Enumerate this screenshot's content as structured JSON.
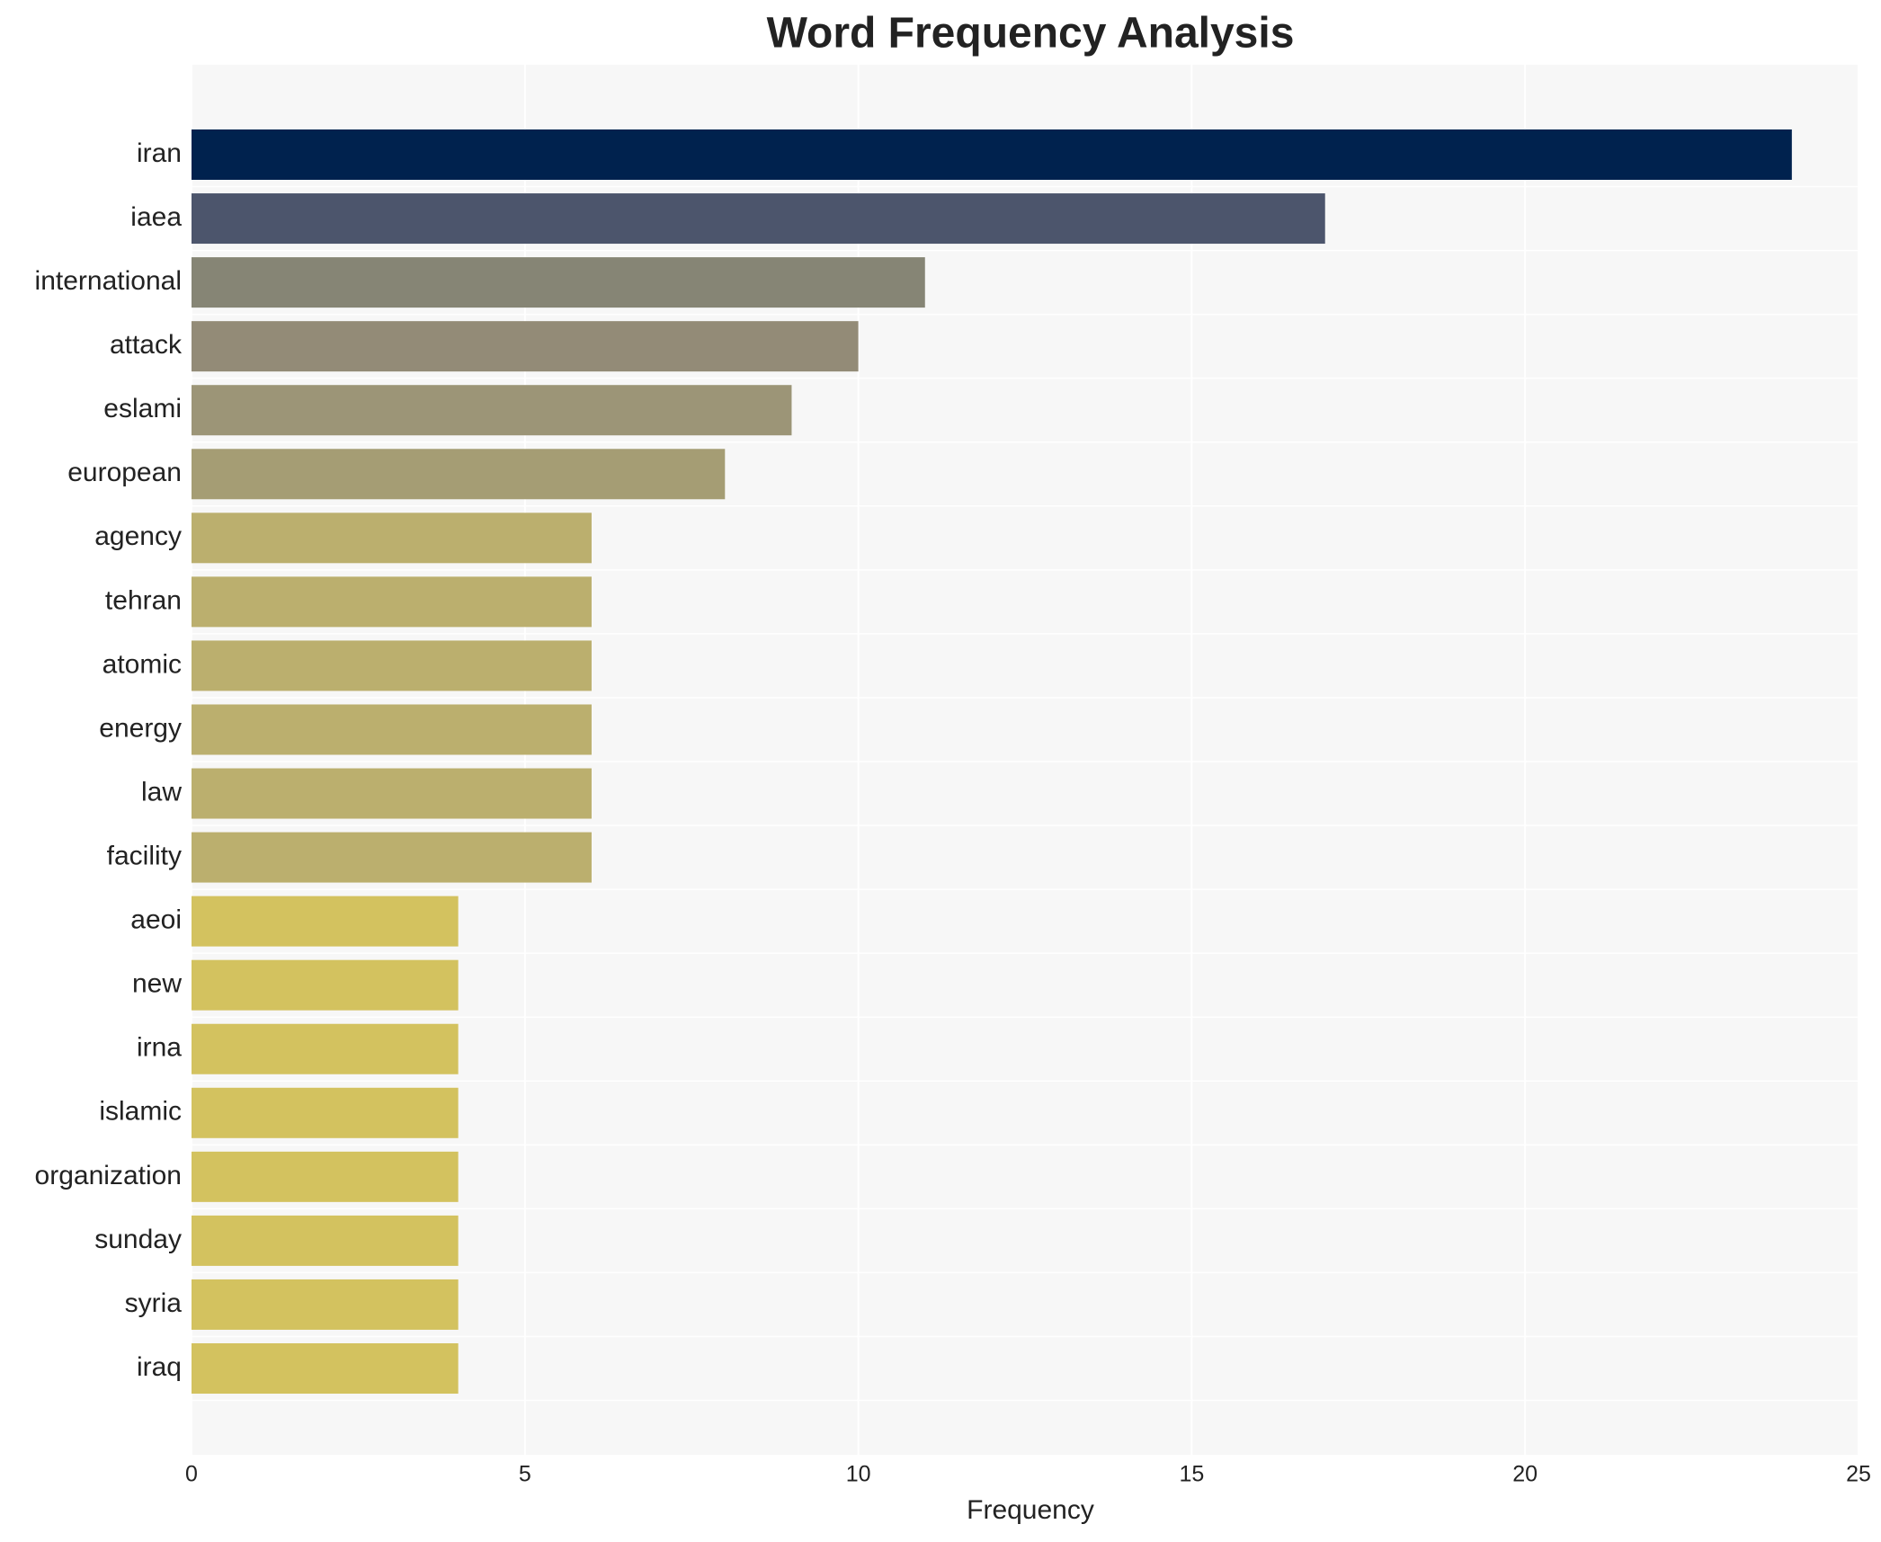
{
  "chart_data": {
    "type": "hbar",
    "title": "Word Frequency Analysis",
    "x_label": "Frequency",
    "categories": [
      "iran",
      "iaea",
      "international",
      "attack",
      "eslami",
      "european",
      "agency",
      "tehran",
      "atomic",
      "energy",
      "law",
      "facility",
      "aeoi",
      "new",
      "irna",
      "islamic",
      "organization",
      "sunday",
      "syria",
      "iraq"
    ],
    "values": [
      24,
      17,
      11,
      10,
      9,
      8,
      6,
      6,
      6,
      6,
      6,
      6,
      4,
      4,
      4,
      4,
      4,
      4,
      4,
      4
    ],
    "colors": [
      "#00224e",
      "#4c556c",
      "#868575",
      "#938b77",
      "#9c9577",
      "#a59d74",
      "#bbaf6e",
      "#bbaf6e",
      "#bbaf6e",
      "#bbaf6e",
      "#bbaf6e",
      "#bbaf6e",
      "#d3c25f",
      "#d3c25f",
      "#d3c25f",
      "#d3c25f",
      "#d3c25f",
      "#d3c25f",
      "#d3c25f",
      "#d3c25f"
    ],
    "xlim": [
      0,
      25
    ],
    "xticks": [
      0,
      5,
      10,
      15,
      20,
      25
    ],
    "grid": true
  }
}
